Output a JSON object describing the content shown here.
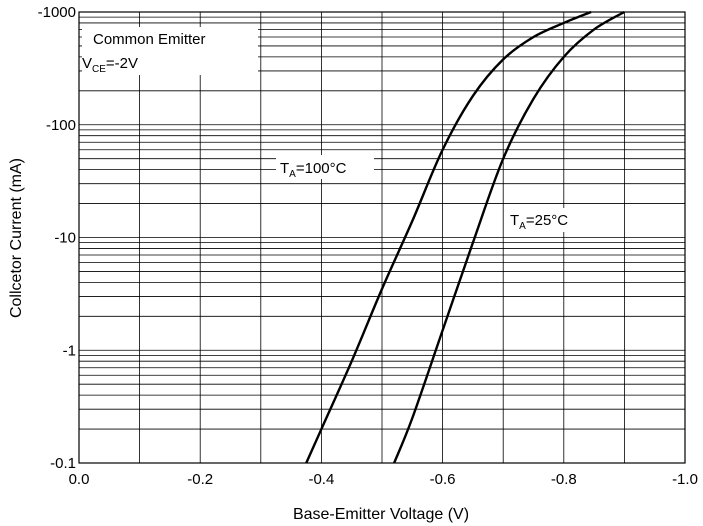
{
  "chart_data": {
    "type": "line",
    "xlabel": "Base-Emitter Voltage (V)",
    "ylabel": "Collcetor Current (mA)",
    "xlim": [
      0.0,
      -1.0
    ],
    "ylim": [
      -0.1,
      -1000
    ],
    "y_scale": "log",
    "grid": true,
    "x_ticks": [
      0.0,
      -0.2,
      -0.4,
      -0.6,
      -0.8,
      -1.0
    ],
    "x_tick_labels": [
      "0.0",
      "-0.2",
      "-0.4",
      "-0.6",
      "-0.8",
      "-1.0"
    ],
    "y_ticks": [
      -0.1,
      -1,
      -10,
      -100,
      -1000
    ],
    "y_tick_labels": [
      "-0.1",
      "-1",
      "-10",
      "-100",
      "-1000"
    ],
    "annotation": {
      "line1": "Common Emitter",
      "line2_main": "V",
      "line2_sub": "CE",
      "line2_rest": "=-2V"
    },
    "series": [
      {
        "label_main": "T",
        "label_sub": "A",
        "label_rest": "=100°C",
        "x": [
          -0.375,
          -0.4,
          -0.45,
          -0.5,
          -0.55,
          -0.6,
          -0.65,
          -0.7,
          -0.75,
          -0.8,
          -0.845
        ],
        "y": [
          -0.1,
          -0.2,
          -0.8,
          -3.5,
          -14,
          -60,
          -180,
          -380,
          -600,
          -800,
          -1000
        ]
      },
      {
        "label_main": "T",
        "label_sub": "A",
        "label_rest": "=25°C",
        "x": [
          -0.52,
          -0.55,
          -0.6,
          -0.65,
          -0.7,
          -0.75,
          -0.8,
          -0.85,
          -0.9
        ],
        "y": [
          -0.1,
          -0.25,
          -1.5,
          -9,
          -50,
          -170,
          -400,
          -700,
          -1000
        ]
      }
    ]
  }
}
